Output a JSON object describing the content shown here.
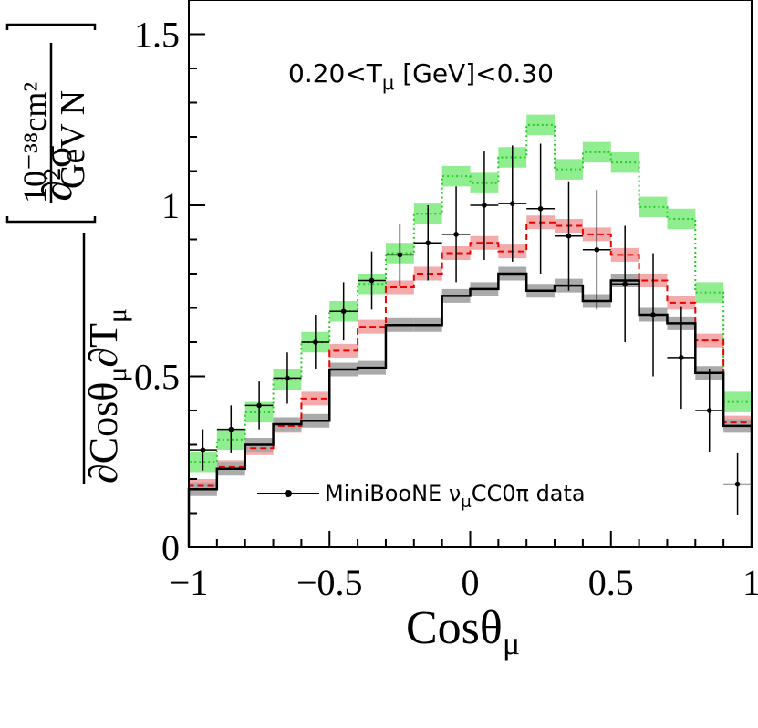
{
  "chart_data": {
    "type": "histogram",
    "title": "0.20<Tμ [GeV]<0.30",
    "title_parts": {
      "pre": "0.20<T",
      "sub": "μ",
      "post": " [GeV]<0.30"
    },
    "xlabel": {
      "main": "Cosθ",
      "sub": "μ"
    },
    "ylabel": {
      "numerator": "∂²σ",
      "denominator_main": "∂Cosθ",
      "denominator_sub1": "μ",
      "denominator_mid": "∂T",
      "denominator_sub2": "μ",
      "unit_numerator": "10⁻³⁸cm²",
      "unit_denominator": "GeV N"
    },
    "xlim": [
      -1,
      1
    ],
    "ylim": [
      0,
      1.6
    ],
    "x_ticks": [
      {
        "value": -1,
        "label": "−1"
      },
      {
        "value": -0.5,
        "label": "−0.5"
      },
      {
        "value": 0,
        "label": "0"
      },
      {
        "value": 0.5,
        "label": "0.5"
      },
      {
        "value": 1,
        "label": "1"
      }
    ],
    "y_ticks": [
      {
        "value": 0,
        "label": "0"
      },
      {
        "value": 0.5,
        "label": "0.5"
      },
      {
        "value": 1,
        "label": "1"
      },
      {
        "value": 1.5,
        "label": "1.5"
      }
    ],
    "bin_edges": [
      -1.0,
      -0.9,
      -0.8,
      -0.7,
      -0.6,
      -0.5,
      -0.4,
      -0.3,
      -0.2,
      -0.1,
      0.0,
      0.1,
      0.2,
      0.3,
      0.4,
      0.5,
      0.6,
      0.7,
      0.8,
      0.9,
      1.0
    ],
    "series": [
      {
        "name": "green model",
        "color": "#22cc22",
        "band_color": "#90ee90",
        "style": "dotted",
        "values": [
          0.25,
          0.315,
          0.395,
          0.49,
          0.6,
          0.69,
          0.77,
          0.86,
          0.975,
          1.085,
          1.065,
          1.14,
          1.235,
          1.105,
          1.155,
          1.125,
          0.995,
          0.96,
          0.745,
          0.425
        ],
        "band": 0.03
      },
      {
        "name": "red model",
        "color": "#ee0000",
        "band_color": "#f4aaaa",
        "style": "dashed",
        "values": [
          0.18,
          0.235,
          0.29,
          0.355,
          0.435,
          0.575,
          0.645,
          0.76,
          0.8,
          0.86,
          0.89,
          0.865,
          0.95,
          0.94,
          0.915,
          0.855,
          0.78,
          0.715,
          0.605,
          0.365
        ],
        "band": 0.02
      },
      {
        "name": "black model",
        "color": "#000000",
        "band_color": "#aaaaaa",
        "style": "solid",
        "values": [
          0.17,
          0.23,
          0.3,
          0.36,
          0.37,
          0.52,
          0.525,
          0.65,
          0.65,
          0.735,
          0.755,
          0.8,
          0.75,
          0.765,
          0.72,
          0.78,
          0.68,
          0.655,
          0.51,
          0.355
        ],
        "band": 0.02
      }
    ],
    "data_points": {
      "name": "MiniBooNE νμCC0π data",
      "x": [
        -0.95,
        -0.85,
        -0.75,
        -0.65,
        -0.55,
        -0.45,
        -0.35,
        -0.25,
        -0.15,
        -0.05,
        0.05,
        0.15,
        0.25,
        0.35,
        0.45,
        0.55,
        0.65,
        0.75,
        0.85,
        0.95
      ],
      "y": [
        0.285,
        0.345,
        0.415,
        0.495,
        0.6,
        0.69,
        0.78,
        0.855,
        0.89,
        0.915,
        1.0,
        1.005,
        0.99,
        0.91,
        0.87,
        0.77,
        0.68,
        0.555,
        0.4,
        0.185
      ],
      "yerr": [
        0.06,
        0.07,
        0.07,
        0.075,
        0.08,
        0.085,
        0.085,
        0.09,
        0.11,
        0.14,
        0.16,
        0.17,
        0.19,
        0.16,
        0.175,
        0.17,
        0.18,
        0.15,
        0.12,
        0.09
      ]
    },
    "legend": {
      "position": "bottom-right",
      "label_pre": "MiniBooNE ν",
      "label_sub": "μ",
      "label_post": "CC0π  data"
    }
  }
}
